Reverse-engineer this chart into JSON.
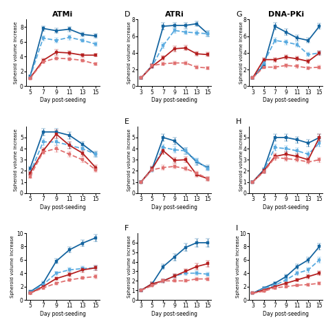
{
  "x_left": [
    5,
    7,
    9,
    11,
    13,
    15
  ],
  "x_right": [
    3,
    5,
    7,
    9,
    11,
    13,
    15
  ],
  "ATMi_A": {
    "solid_dark_blue": [
      1.3,
      7.8,
      7.5,
      7.7,
      7.0,
      6.8
    ],
    "solid_dark_blue_err": [
      0.2,
      0.35,
      0.3,
      0.35,
      0.25,
      0.3
    ],
    "dashed_light_blue": [
      1.2,
      6.5,
      6.2,
      6.6,
      6.2,
      5.7
    ],
    "dashed_light_blue_err": [
      0.2,
      0.3,
      0.3,
      0.3,
      0.25,
      0.25
    ],
    "solid_dark_red": [
      1.1,
      3.5,
      4.6,
      4.5,
      4.2,
      4.2
    ],
    "solid_dark_red_err": [
      0.15,
      0.25,
      0.35,
      0.3,
      0.25,
      0.2
    ],
    "dashed_light_red": [
      1.05,
      3.3,
      3.8,
      3.7,
      3.5,
      3.0
    ],
    "dashed_light_red_err": [
      0.12,
      0.2,
      0.25,
      0.25,
      0.2,
      0.2
    ],
    "ylim": [
      0,
      9
    ],
    "yticks": [
      0,
      2,
      4,
      6,
      8
    ]
  },
  "ATRi_D": {
    "solid_dark_blue": [
      1.0,
      2.5,
      7.2,
      7.3,
      7.3,
      7.5,
      6.3
    ],
    "solid_dark_blue_err": [
      0.1,
      0.2,
      0.4,
      0.35,
      0.3,
      0.3,
      0.3
    ],
    "dashed_light_blue": [
      1.0,
      2.4,
      4.9,
      6.7,
      6.5,
      6.4,
      6.3
    ],
    "dashed_light_blue_err": [
      0.1,
      0.2,
      0.3,
      0.35,
      0.3,
      0.3,
      0.3
    ],
    "solid_dark_red": [
      1.0,
      2.4,
      3.4,
      4.5,
      4.6,
      3.9,
      3.8
    ],
    "solid_dark_red_err": [
      0.1,
      0.2,
      0.25,
      0.3,
      0.3,
      0.25,
      0.25
    ],
    "dashed_light_red": [
      1.0,
      2.5,
      2.7,
      2.8,
      2.8,
      2.3,
      2.2
    ],
    "dashed_light_red_err": [
      0.1,
      0.15,
      0.2,
      0.2,
      0.2,
      0.18,
      0.18
    ],
    "ylim": [
      0,
      8
    ],
    "yticks": [
      0,
      2,
      4,
      6,
      8
    ]
  },
  "DNAPKi_G": {
    "solid_dark_blue": [
      1.0,
      2.5,
      7.2,
      6.5,
      5.8,
      5.5,
      7.2
    ],
    "solid_dark_blue_err": [
      0.1,
      0.25,
      0.4,
      0.35,
      0.3,
      0.3,
      0.35
    ],
    "dashed_light_blue": [
      1.0,
      2.8,
      5.5,
      5.3,
      5.0,
      3.8,
      4.0
    ],
    "dashed_light_blue_err": [
      0.1,
      0.2,
      0.3,
      0.3,
      0.28,
      0.25,
      0.28
    ],
    "solid_dark_red": [
      1.0,
      3.2,
      3.2,
      3.5,
      3.3,
      3.0,
      4.0
    ],
    "solid_dark_red_err": [
      0.1,
      0.22,
      0.25,
      0.28,
      0.25,
      0.22,
      0.28
    ],
    "dashed_light_red": [
      1.0,
      2.3,
      2.3,
      2.5,
      2.4,
      2.2,
      2.3
    ],
    "dashed_light_red_err": [
      0.1,
      0.15,
      0.18,
      0.2,
      0.18,
      0.15,
      0.18
    ],
    "ylim": [
      0,
      8
    ],
    "yticks": [
      0,
      2,
      4,
      6,
      8
    ]
  },
  "ATMi_B": {
    "solid_dark_blue": [
      2.2,
      5.5,
      5.5,
      5.2,
      4.4,
      3.5
    ],
    "solid_dark_blue_err": [
      0.2,
      0.3,
      0.3,
      0.3,
      0.25,
      0.25
    ],
    "dashed_light_blue": [
      1.8,
      4.6,
      4.6,
      4.3,
      4.0,
      3.5
    ],
    "dashed_light_blue_err": [
      0.2,
      0.3,
      0.3,
      0.28,
      0.25,
      0.22
    ],
    "solid_dark_red": [
      1.8,
      3.8,
      5.3,
      4.3,
      3.6,
      2.3
    ],
    "solid_dark_red_err": [
      0.15,
      0.25,
      0.35,
      0.3,
      0.25,
      0.2
    ],
    "dashed_light_red": [
      1.5,
      3.7,
      4.0,
      3.5,
      3.0,
      2.1
    ],
    "dashed_light_red_err": [
      0.15,
      0.22,
      0.28,
      0.25,
      0.22,
      0.18
    ],
    "ylim": [
      0,
      6
    ],
    "yticks": [
      0,
      1,
      2,
      3,
      4,
      5
    ]
  },
  "ATRi_E": {
    "solid_dark_blue": [
      1.0,
      2.2,
      5.0,
      4.7,
      3.8,
      2.8,
      2.3
    ],
    "solid_dark_blue_err": [
      0.1,
      0.2,
      0.3,
      0.3,
      0.28,
      0.25,
      0.22
    ],
    "dashed_light_blue": [
      1.0,
      2.1,
      4.1,
      3.9,
      3.8,
      2.9,
      2.2
    ],
    "dashed_light_blue_err": [
      0.1,
      0.2,
      0.28,
      0.28,
      0.26,
      0.23,
      0.2
    ],
    "solid_dark_red": [
      1.0,
      2.2,
      3.8,
      2.95,
      3.0,
      1.65,
      1.3
    ],
    "solid_dark_red_err": [
      0.1,
      0.18,
      0.28,
      0.25,
      0.25,
      0.2,
      0.18
    ],
    "dashed_light_red": [
      1.0,
      2.1,
      2.3,
      2.4,
      2.2,
      1.8,
      1.3
    ],
    "dashed_light_red_err": [
      0.1,
      0.15,
      0.2,
      0.2,
      0.18,
      0.15,
      0.13
    ],
    "ylim": [
      0,
      6
    ],
    "yticks": [
      0,
      1,
      2,
      3,
      4,
      5
    ]
  },
  "DNAPKi_H": {
    "solid_dark_blue": [
      1.0,
      2.1,
      5.0,
      5.0,
      4.8,
      4.5,
      5.0
    ],
    "solid_dark_blue_err": [
      0.1,
      0.2,
      0.3,
      0.3,
      0.28,
      0.28,
      0.3
    ],
    "dashed_light_blue": [
      1.0,
      2.0,
      4.1,
      4.0,
      3.8,
      3.5,
      4.5
    ],
    "dashed_light_blue_err": [
      0.1,
      0.2,
      0.28,
      0.28,
      0.26,
      0.25,
      0.28
    ],
    "solid_dark_red": [
      1.0,
      2.0,
      3.3,
      3.5,
      3.3,
      3.0,
      5.0
    ],
    "solid_dark_red_err": [
      0.1,
      0.18,
      0.25,
      0.28,
      0.25,
      0.22,
      0.3
    ],
    "dashed_light_red": [
      1.0,
      1.9,
      3.2,
      3.1,
      3.0,
      2.8,
      3.0
    ],
    "dashed_light_red_err": [
      0.1,
      0.15,
      0.22,
      0.22,
      0.2,
      0.18,
      0.22
    ],
    "ylim": [
      0,
      6
    ],
    "yticks": [
      0,
      1,
      2,
      3,
      4,
      5
    ]
  },
  "ATMi_C": {
    "solid_dark_blue": [
      1.2,
      2.5,
      5.8,
      7.5,
      8.5,
      9.3
    ],
    "solid_dark_blue_err": [
      0.2,
      0.25,
      0.35,
      0.4,
      0.45,
      0.5
    ],
    "dashed_light_blue": [
      1.1,
      2.3,
      4.0,
      4.5,
      4.7,
      4.8
    ],
    "dashed_light_blue_err": [
      0.15,
      0.2,
      0.28,
      0.3,
      0.32,
      0.35
    ],
    "solid_dark_red": [
      1.0,
      2.0,
      3.2,
      3.8,
      4.5,
      4.8
    ],
    "solid_dark_red_err": [
      0.12,
      0.18,
      0.25,
      0.28,
      0.32,
      0.35
    ],
    "dashed_light_red": [
      1.0,
      1.8,
      2.5,
      3.0,
      3.3,
      3.5
    ],
    "dashed_light_red_err": [
      0.1,
      0.15,
      0.2,
      0.22,
      0.25,
      0.28
    ],
    "ylim": [
      0,
      10
    ],
    "yticks": [
      0,
      2,
      4,
      6,
      8,
      10
    ]
  },
  "ATRi_F": {
    "solid_dark_blue": [
      1.0,
      1.7,
      3.5,
      4.5,
      5.5,
      6.0,
      6.0
    ],
    "solid_dark_blue_err": [
      0.1,
      0.2,
      0.28,
      0.35,
      0.4,
      0.45,
      0.45
    ],
    "dashed_light_blue": [
      1.0,
      1.6,
      2.0,
      2.5,
      2.8,
      2.8,
      2.7
    ],
    "dashed_light_blue_err": [
      0.1,
      0.15,
      0.18,
      0.2,
      0.22,
      0.22,
      0.2
    ],
    "solid_dark_red": [
      1.0,
      1.7,
      2.0,
      2.5,
      3.0,
      3.5,
      3.8
    ],
    "solid_dark_red_err": [
      0.1,
      0.15,
      0.18,
      0.22,
      0.25,
      0.3,
      0.32
    ],
    "dashed_light_red": [
      1.0,
      1.5,
      2.0,
      2.0,
      2.0,
      2.2,
      2.2
    ],
    "dashed_light_red_err": [
      0.1,
      0.12,
      0.15,
      0.15,
      0.15,
      0.18,
      0.18
    ],
    "ylim": [
      0,
      7
    ],
    "yticks": [
      0,
      1,
      2,
      3,
      4,
      5,
      6
    ]
  },
  "DNAPKi_I": {
    "solid_dark_blue": [
      1.0,
      1.8,
      2.5,
      3.5,
      5.0,
      6.0,
      8.0
    ],
    "solid_dark_blue_err": [
      0.1,
      0.18,
      0.22,
      0.28,
      0.35,
      0.4,
      0.5
    ],
    "dashed_light_blue": [
      1.0,
      1.7,
      2.2,
      3.0,
      4.0,
      4.5,
      6.0
    ],
    "dashed_light_blue_err": [
      0.1,
      0.15,
      0.2,
      0.25,
      0.3,
      0.35,
      0.4
    ],
    "solid_dark_red": [
      1.0,
      1.5,
      2.0,
      2.5,
      3.0,
      3.5,
      4.0
    ],
    "solid_dark_red_err": [
      0.1,
      0.14,
      0.18,
      0.22,
      0.25,
      0.3,
      0.32
    ],
    "dashed_light_red": [
      1.0,
      1.3,
      1.8,
      2.0,
      2.2,
      2.3,
      2.5
    ],
    "dashed_light_red_err": [
      0.1,
      0.12,
      0.15,
      0.16,
      0.18,
      0.18,
      0.2
    ],
    "ylim": [
      0,
      10
    ],
    "yticks": [
      0,
      2,
      4,
      6,
      8,
      10
    ]
  },
  "colors": {
    "solid_dark_blue": "#1565a0",
    "dashed_light_blue": "#5aabe0",
    "solid_dark_red": "#b52020",
    "dashed_light_red": "#e07070"
  },
  "ylabel": "Spheroid volume increase",
  "xlabel": "Day post-seeding",
  "markersize": 3.5,
  "linewidth": 1.3,
  "capsize": 2,
  "elinewidth": 0.7,
  "col_titles": [
    "ATMi",
    "ATRi",
    "DNA-PKi"
  ],
  "panel_labels_mid": [
    "D",
    "G"
  ],
  "panel_labels_bot": [
    "E",
    "H"
  ],
  "panel_labels_bot2": [
    "F",
    "I"
  ]
}
